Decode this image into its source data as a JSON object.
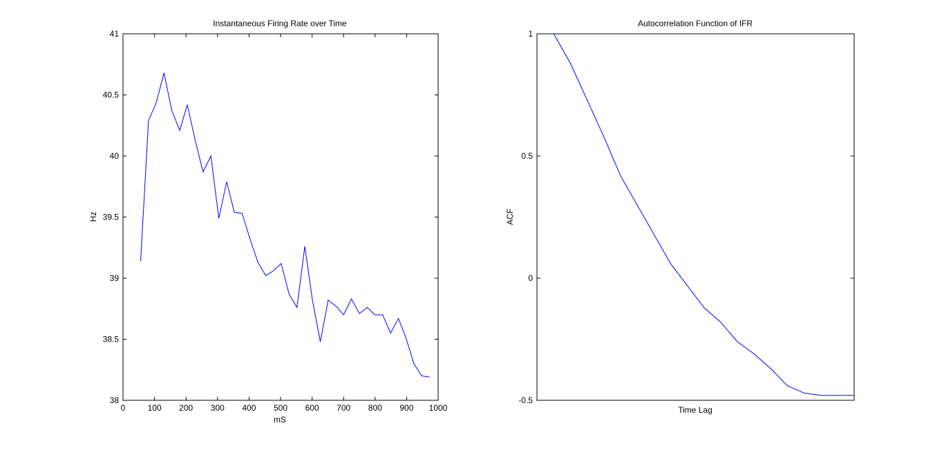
{
  "chart_data": [
    {
      "type": "line",
      "title": "Instantaneous Firing Rate over Time",
      "xlabel": "mS",
      "ylabel": "Hz",
      "xlim": [
        0,
        1000
      ],
      "ylim": [
        38,
        41
      ],
      "xticks": [
        0,
        100,
        200,
        300,
        400,
        500,
        600,
        700,
        800,
        900,
        1000
      ],
      "xtick_labels": [
        "0",
        "100",
        "200",
        "300",
        "400",
        "500",
        "600",
        "700",
        "800",
        "900",
        "1000"
      ],
      "yticks": [
        38,
        38.5,
        39,
        39.5,
        40,
        40.5,
        41
      ],
      "ytick_labels": [
        "38",
        "38.5",
        "39",
        "39.5",
        "40",
        "40.5",
        "41"
      ],
      "grid": false,
      "color": "#0000ff",
      "series": [
        {
          "x": [
            56,
            81,
            106,
            130,
            155,
            180,
            204,
            229,
            254,
            279,
            304,
            329,
            353,
            378,
            403,
            428,
            453,
            477,
            502,
            527,
            552,
            577,
            601,
            626,
            651,
            676,
            700,
            725,
            750,
            775,
            799,
            824,
            849,
            874,
            898,
            923,
            948,
            973
          ],
          "values": [
            39.14,
            40.29,
            40.44,
            40.68,
            40.37,
            40.21,
            40.42,
            40.13,
            39.87,
            40.0,
            39.49,
            39.79,
            39.54,
            39.53,
            39.32,
            39.13,
            39.02,
            39.06,
            39.12,
            38.87,
            38.76,
            39.26,
            38.82,
            38.48,
            38.82,
            38.77,
            38.7,
            38.83,
            38.71,
            38.76,
            38.7,
            38.7,
            38.55,
            38.67,
            38.51,
            38.3,
            38.2,
            38.19
          ]
        }
      ]
    },
    {
      "type": "line",
      "title": "Autocorrelation Function of IFR",
      "xlabel": "Time Lag",
      "ylabel": "ACF",
      "xlim": [
        0,
        19
      ],
      "ylim": [
        -0.5,
        1
      ],
      "xticks": [],
      "yticks": [
        -0.5,
        0,
        0.5,
        1
      ],
      "ytick_labels": [
        "-0.5",
        "0",
        "0.5",
        "1"
      ],
      "grid": false,
      "color": "#0000ff",
      "series": [
        {
          "x": [
            1,
            2,
            3,
            4,
            5,
            6,
            7,
            8,
            9,
            10,
            11,
            12,
            13,
            14,
            15,
            16,
            17,
            18,
            19
          ],
          "values": [
            1.0,
            0.88,
            0.73,
            0.58,
            0.42,
            0.3,
            0.18,
            0.06,
            -0.03,
            -0.12,
            -0.18,
            -0.26,
            -0.31,
            -0.37,
            -0.44,
            -0.47,
            -0.48,
            -0.48,
            -0.48
          ]
        }
      ]
    }
  ]
}
